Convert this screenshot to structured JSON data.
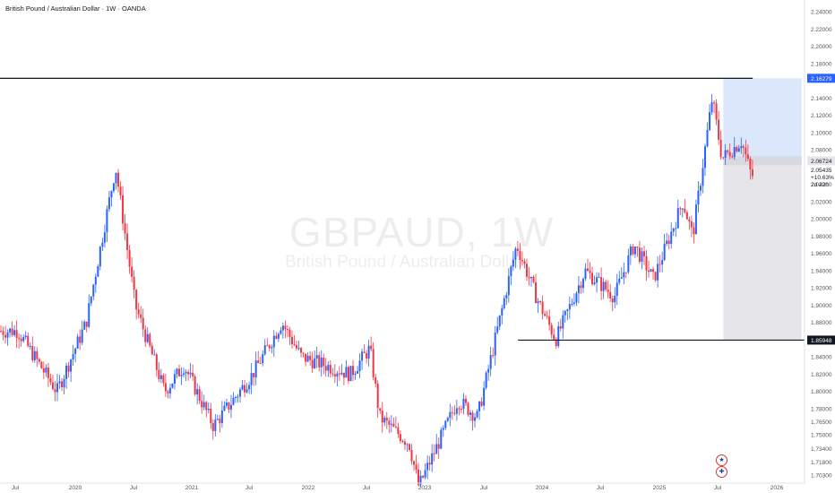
{
  "title": "British Pound / Australian Dollar · 1W · OANDA",
  "watermark": {
    "symbol": "GBPAUD, 1W",
    "name": "British Pound / Australian Dollar"
  },
  "price_tags": {
    "high_level": "2.16279",
    "last_price": "2.06724",
    "info_lines": [
      "2.05435",
      "+10.63%",
      "2d 22h"
    ],
    "low_level": "1.85948"
  },
  "colors": {
    "up": "#2962ff",
    "down": "#f23645",
    "target_zone": "#dbe8fb",
    "stop_zone": "#e6e6ea",
    "line": "#131722"
  },
  "icons": [
    "australia-flag-icon",
    "uk-flag-icon"
  ],
  "chart_data": {
    "type": "candlestick",
    "title": "British Pound / Australian Dollar · 1W · OANDA",
    "y_axis": {
      "range": [
        1.69,
        2.25
      ],
      "ticks": [
        "2.24000",
        "2.22000",
        "2.20000",
        "2.18000",
        "2.16279",
        "2.14000",
        "2.12000",
        "2.10000",
        "2.08000",
        "2.06724",
        "2.04000",
        "2.02000",
        "2.00000",
        "1.98000",
        "1.96000",
        "1.94000",
        "1.92000",
        "1.90000",
        "1.88000",
        "1.85948",
        "1.84000",
        "1.82000",
        "1.80000",
        "1.78000",
        "1.76500",
        "1.75000",
        "1.73400",
        "1.71800",
        "1.70300"
      ]
    },
    "x_axis": {
      "ticks": [
        "Jul",
        "2020",
        "Jul",
        "2021",
        "Jul",
        "2022",
        "Jul",
        "2023",
        "Jul",
        "2024",
        "Jul",
        "2025",
        "Jul",
        "2026"
      ]
    },
    "horizontal_levels": [
      {
        "price": 2.16279,
        "from": "2019-01",
        "to": "2025-08"
      },
      {
        "price": 1.85948,
        "from": "2023-08",
        "to": "2026-03"
      }
    ],
    "position_tool": {
      "entry": 2.06724,
      "target": 2.16279,
      "stop": 1.86,
      "from": "2025-05",
      "to": "2026-01"
    },
    "price_path": [
      {
        "date": "2019-05",
        "price": 1.87
      },
      {
        "date": "2019-09",
        "price": 1.8
      },
      {
        "date": "2019-12",
        "price": 1.88
      },
      {
        "date": "2020-03",
        "price": 2.06
      },
      {
        "date": "2020-05",
        "price": 1.9
      },
      {
        "date": "2020-08",
        "price": 1.8
      },
      {
        "date": "2020-10",
        "price": 1.83
      },
      {
        "date": "2021-01",
        "price": 1.76
      },
      {
        "date": "2021-05",
        "price": 1.82
      },
      {
        "date": "2021-08",
        "price": 1.88
      },
      {
        "date": "2021-10",
        "price": 1.84
      },
      {
        "date": "2022-03",
        "price": 1.82
      },
      {
        "date": "2022-05",
        "price": 1.85
      },
      {
        "date": "2022-06",
        "price": 1.77
      },
      {
        "date": "2022-09",
        "price": 1.74
      },
      {
        "date": "2022-10",
        "price": 1.69
      },
      {
        "date": "2023-02",
        "price": 1.79
      },
      {
        "date": "2023-04",
        "price": 1.77
      },
      {
        "date": "2023-07",
        "price": 1.92
      },
      {
        "date": "2023-08",
        "price": 1.97
      },
      {
        "date": "2023-10",
        "price": 1.91
      },
      {
        "date": "2023-12",
        "price": 1.86
      },
      {
        "date": "2024-03",
        "price": 1.94
      },
      {
        "date": "2024-06",
        "price": 1.91
      },
      {
        "date": "2024-08",
        "price": 1.97
      },
      {
        "date": "2024-10",
        "price": 1.93
      },
      {
        "date": "2025-01",
        "price": 2.02
      },
      {
        "date": "2025-02",
        "price": 1.98
      },
      {
        "date": "2025-04",
        "price": 2.14
      },
      {
        "date": "2025-05",
        "price": 2.07
      },
      {
        "date": "2025-07",
        "price": 2.09
      },
      {
        "date": "2025-08",
        "price": 2.05
      }
    ]
  }
}
